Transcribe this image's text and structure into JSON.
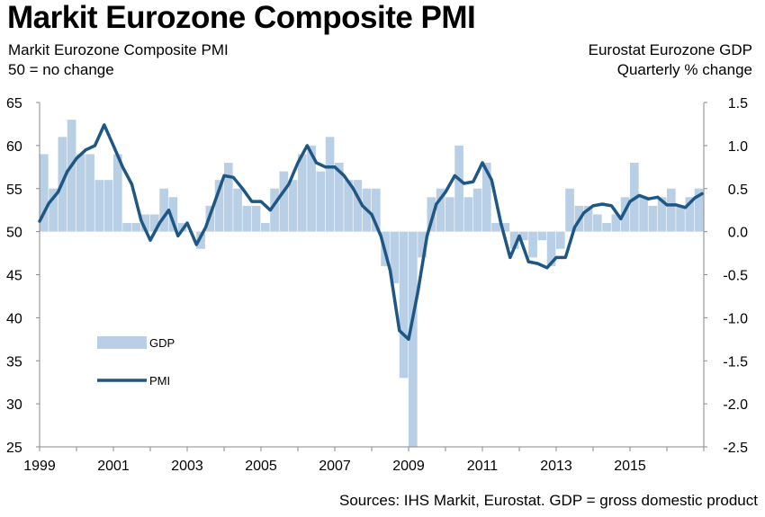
{
  "title": "Markit Eurozone Composite PMI",
  "left_header": {
    "line1": "Markit Eurozone Composite PMI",
    "line2": "50 = no change"
  },
  "right_header": {
    "line1": "Eurostat Eurozone GDP",
    "line2": "Quarterly % change"
  },
  "source": "Sources: IHS Markit, Eurostat. GDP = gross domestic product",
  "colors": {
    "pmi": "#1f5784",
    "gdp": "#b9cfe6"
  },
  "chart_data": {
    "type": "line",
    "title": "Markit Eurozone Composite PMI",
    "x_range": [
      1999.0,
      2017.0
    ],
    "x_ticks": [
      "1999",
      "2001",
      "2003",
      "2005",
      "2007",
      "2009",
      "2011",
      "2013",
      "2015"
    ],
    "y_left": {
      "label": "Markit Eurozone Composite PMI, 50 = no change",
      "range": [
        25,
        65
      ],
      "ticks": [
        "65",
        "60",
        "55",
        "50",
        "45",
        "40",
        "35",
        "30",
        "25"
      ]
    },
    "y_right": {
      "label": "Eurostat Eurozone GDP, Quarterly % change",
      "range": [
        -2.5,
        1.5
      ],
      "ticks": [
        "1.5",
        "1.0",
        "0.5",
        "0.0",
        "-0.5",
        "-1.0",
        "-1.5",
        "-2.0",
        "-2.5"
      ]
    },
    "legend": [
      {
        "name": "GDP",
        "style": "bar"
      },
      {
        "name": "PMI",
        "style": "line"
      }
    ],
    "legend_position": "bottom-left",
    "series": [
      {
        "name": "GDP",
        "axis": "right",
        "type": "bar",
        "x": [
          1999.0,
          1999.25,
          1999.5,
          1999.75,
          2000.0,
          2000.25,
          2000.5,
          2000.75,
          2001.0,
          2001.25,
          2001.5,
          2001.75,
          2002.0,
          2002.25,
          2002.5,
          2002.75,
          2003.0,
          2003.25,
          2003.5,
          2003.75,
          2004.0,
          2004.25,
          2004.5,
          2004.75,
          2005.0,
          2005.25,
          2005.5,
          2005.75,
          2006.0,
          2006.25,
          2006.5,
          2006.75,
          2007.0,
          2007.25,
          2007.5,
          2007.75,
          2008.0,
          2008.25,
          2008.5,
          2008.75,
          2009.0,
          2009.25,
          2009.5,
          2009.75,
          2010.0,
          2010.25,
          2010.5,
          2010.75,
          2011.0,
          2011.25,
          2011.5,
          2011.75,
          2012.0,
          2012.25,
          2012.5,
          2012.75,
          2013.0,
          2013.25,
          2013.5,
          2013.75,
          2014.0,
          2014.25,
          2014.5,
          2014.75,
          2015.0,
          2015.25,
          2015.5,
          2015.75,
          2016.0,
          2016.25,
          2016.5,
          2016.75
        ],
        "values": [
          0.9,
          0.5,
          1.1,
          1.3,
          0.9,
          0.9,
          0.6,
          0.6,
          0.9,
          0.1,
          0.1,
          0.2,
          0.2,
          0.5,
          0.4,
          0.1,
          0.0,
          -0.2,
          0.3,
          0.6,
          0.8,
          0.5,
          0.3,
          0.3,
          0.1,
          0.5,
          0.7,
          0.6,
          0.9,
          1.0,
          0.7,
          1.1,
          0.8,
          0.6,
          0.6,
          0.5,
          0.5,
          -0.4,
          -0.6,
          -1.7,
          -2.5,
          -0.3,
          0.4,
          0.5,
          0.4,
          1.0,
          0.4,
          0.5,
          0.8,
          0.1,
          0.1,
          -0.2,
          -0.1,
          -0.3,
          -0.1,
          -0.4,
          -0.2,
          0.5,
          0.3,
          0.3,
          0.2,
          0.1,
          0.2,
          0.4,
          0.8,
          0.4,
          0.3,
          0.4,
          0.5,
          0.3,
          0.4,
          0.5
        ]
      },
      {
        "name": "PMI",
        "axis": "left",
        "type": "line",
        "x": [
          1999.0,
          1999.25,
          1999.5,
          1999.75,
          2000.0,
          2000.25,
          2000.5,
          2000.75,
          2001.0,
          2001.25,
          2001.5,
          2001.75,
          2002.0,
          2002.25,
          2002.5,
          2002.75,
          2003.0,
          2003.25,
          2003.5,
          2003.75,
          2004.0,
          2004.25,
          2004.5,
          2004.75,
          2005.0,
          2005.25,
          2005.5,
          2005.75,
          2006.0,
          2006.25,
          2006.5,
          2006.75,
          2007.0,
          2007.25,
          2007.5,
          2007.75,
          2008.0,
          2008.25,
          2008.5,
          2008.75,
          2009.0,
          2009.25,
          2009.5,
          2009.75,
          2010.0,
          2010.25,
          2010.5,
          2010.75,
          2011.0,
          2011.25,
          2011.5,
          2011.75,
          2012.0,
          2012.25,
          2012.5,
          2012.75,
          2013.0,
          2013.25,
          2013.5,
          2013.75,
          2014.0,
          2014.25,
          2014.5,
          2014.75,
          2015.0,
          2015.25,
          2015.5,
          2015.75,
          2016.0,
          2016.25,
          2016.5,
          2016.75,
          2016.95
        ],
        "values": [
          51.2,
          53.3,
          54.6,
          57.0,
          58.5,
          59.5,
          60.0,
          62.4,
          60.0,
          57.5,
          55.5,
          51.3,
          49.0,
          51.0,
          52.5,
          49.5,
          51.0,
          48.5,
          50.5,
          53.5,
          56.5,
          56.3,
          55.0,
          53.5,
          53.5,
          52.5,
          54.0,
          55.5,
          58.0,
          60.0,
          58.0,
          57.5,
          57.5,
          56.5,
          55.0,
          53.0,
          52.0,
          49.5,
          45.5,
          38.5,
          37.5,
          43.0,
          49.5,
          53.2,
          54.6,
          56.5,
          55.6,
          55.8,
          58.0,
          56.0,
          51.0,
          47.0,
          49.5,
          46.5,
          46.3,
          45.8,
          47.0,
          47.0,
          50.5,
          52.2,
          53.0,
          53.2,
          53.0,
          51.5,
          53.5,
          54.2,
          53.8,
          54.0,
          53.1,
          53.1,
          52.8,
          53.9,
          54.4
        ]
      }
    ]
  }
}
